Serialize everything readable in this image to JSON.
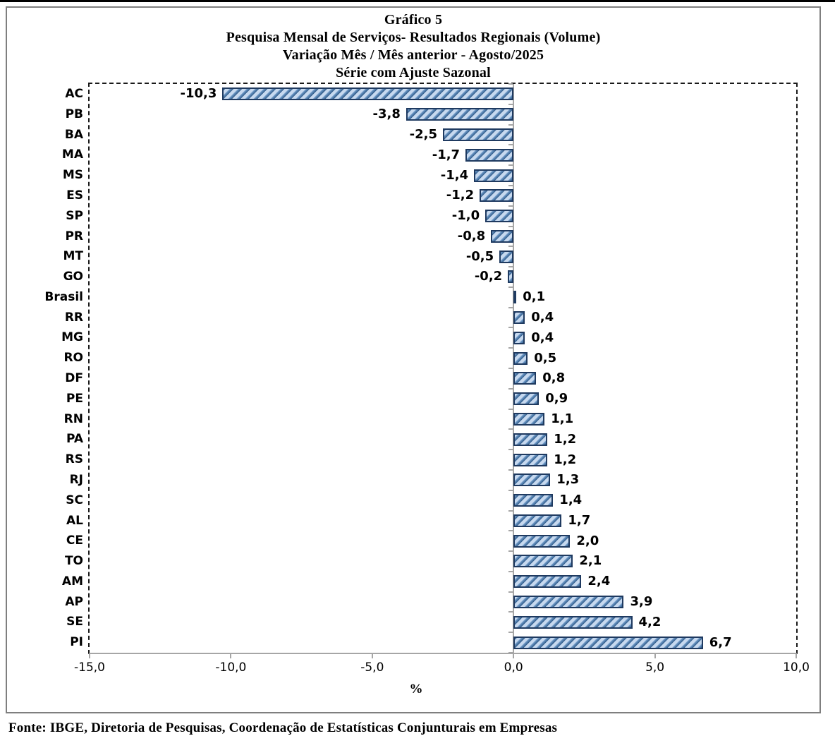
{
  "footer": "Fonte: IBGE, Diretoria de Pesquisas, Coordenação de Estatísticas Conjunturais em Empresas",
  "chart_data": {
    "type": "bar",
    "orientation": "horizontal",
    "title_lines": [
      "Gráfico 5",
      "Pesquisa Mensal de Serviços- Resultados Regionais (Volume)",
      "Variação Mês / Mês anterior - Agosto/2025",
      "Série com Ajuste Sazonal"
    ],
    "xlabel": "%",
    "xlim": [
      -15.0,
      10.0
    ],
    "x_ticks": [
      {
        "value": -15.0,
        "label": "-15,0"
      },
      {
        "value": -10.0,
        "label": "-10,0"
      },
      {
        "value": -5.0,
        "label": "-5,0"
      },
      {
        "value": 0.0,
        "label": "0,0"
      },
      {
        "value": 5.0,
        "label": "5,0"
      },
      {
        "value": 10.0,
        "label": "10,0"
      }
    ],
    "grid": false,
    "legend": "none",
    "items": [
      {
        "category": "AC",
        "value": -10.3,
        "label": "-10,3"
      },
      {
        "category": "PB",
        "value": -3.8,
        "label": "-3,8"
      },
      {
        "category": "BA",
        "value": -2.5,
        "label": "-2,5"
      },
      {
        "category": "MA",
        "value": -1.7,
        "label": "-1,7"
      },
      {
        "category": "MS",
        "value": -1.4,
        "label": "-1,4"
      },
      {
        "category": "ES",
        "value": -1.2,
        "label": "-1,2"
      },
      {
        "category": "SP",
        "value": -1.0,
        "label": "-1,0"
      },
      {
        "category": "PR",
        "value": -0.8,
        "label": "-0,8"
      },
      {
        "category": "MT",
        "value": -0.5,
        "label": "-0,5"
      },
      {
        "category": "GO",
        "value": -0.2,
        "label": "-0,2"
      },
      {
        "category": "Brasil",
        "value": 0.1,
        "label": "0,1"
      },
      {
        "category": "RR",
        "value": 0.4,
        "label": "0,4"
      },
      {
        "category": "MG",
        "value": 0.4,
        "label": "0,4"
      },
      {
        "category": "RO",
        "value": 0.5,
        "label": "0,5"
      },
      {
        "category": "DF",
        "value": 0.8,
        "label": "0,8"
      },
      {
        "category": "PE",
        "value": 0.9,
        "label": "0,9"
      },
      {
        "category": "RN",
        "value": 1.1,
        "label": "1,1"
      },
      {
        "category": "PA",
        "value": 1.2,
        "label": "1,2"
      },
      {
        "category": "RS",
        "value": 1.2,
        "label": "1,2"
      },
      {
        "category": "RJ",
        "value": 1.3,
        "label": "1,3"
      },
      {
        "category": "SC",
        "value": 1.4,
        "label": "1,4"
      },
      {
        "category": "AL",
        "value": 1.7,
        "label": "1,7"
      },
      {
        "category": "CE",
        "value": 2.0,
        "label": "2,0"
      },
      {
        "category": "TO",
        "value": 2.1,
        "label": "2,1"
      },
      {
        "category": "AM",
        "value": 2.4,
        "label": "2,4"
      },
      {
        "category": "AP",
        "value": 3.9,
        "label": "3,9"
      },
      {
        "category": "SE",
        "value": 4.2,
        "label": "4,2"
      },
      {
        "category": "PI",
        "value": 6.7,
        "label": "6,7"
      }
    ],
    "colors": {
      "bar_fill": "#c7d9ef",
      "bar_stripe": "#2f5a88",
      "bar_border": "#1f3a60",
      "axis_line": "#a6a6a6",
      "plot_border": "#1a1a1a",
      "frame_border": "#7f7f7f",
      "text": "#000000"
    }
  }
}
